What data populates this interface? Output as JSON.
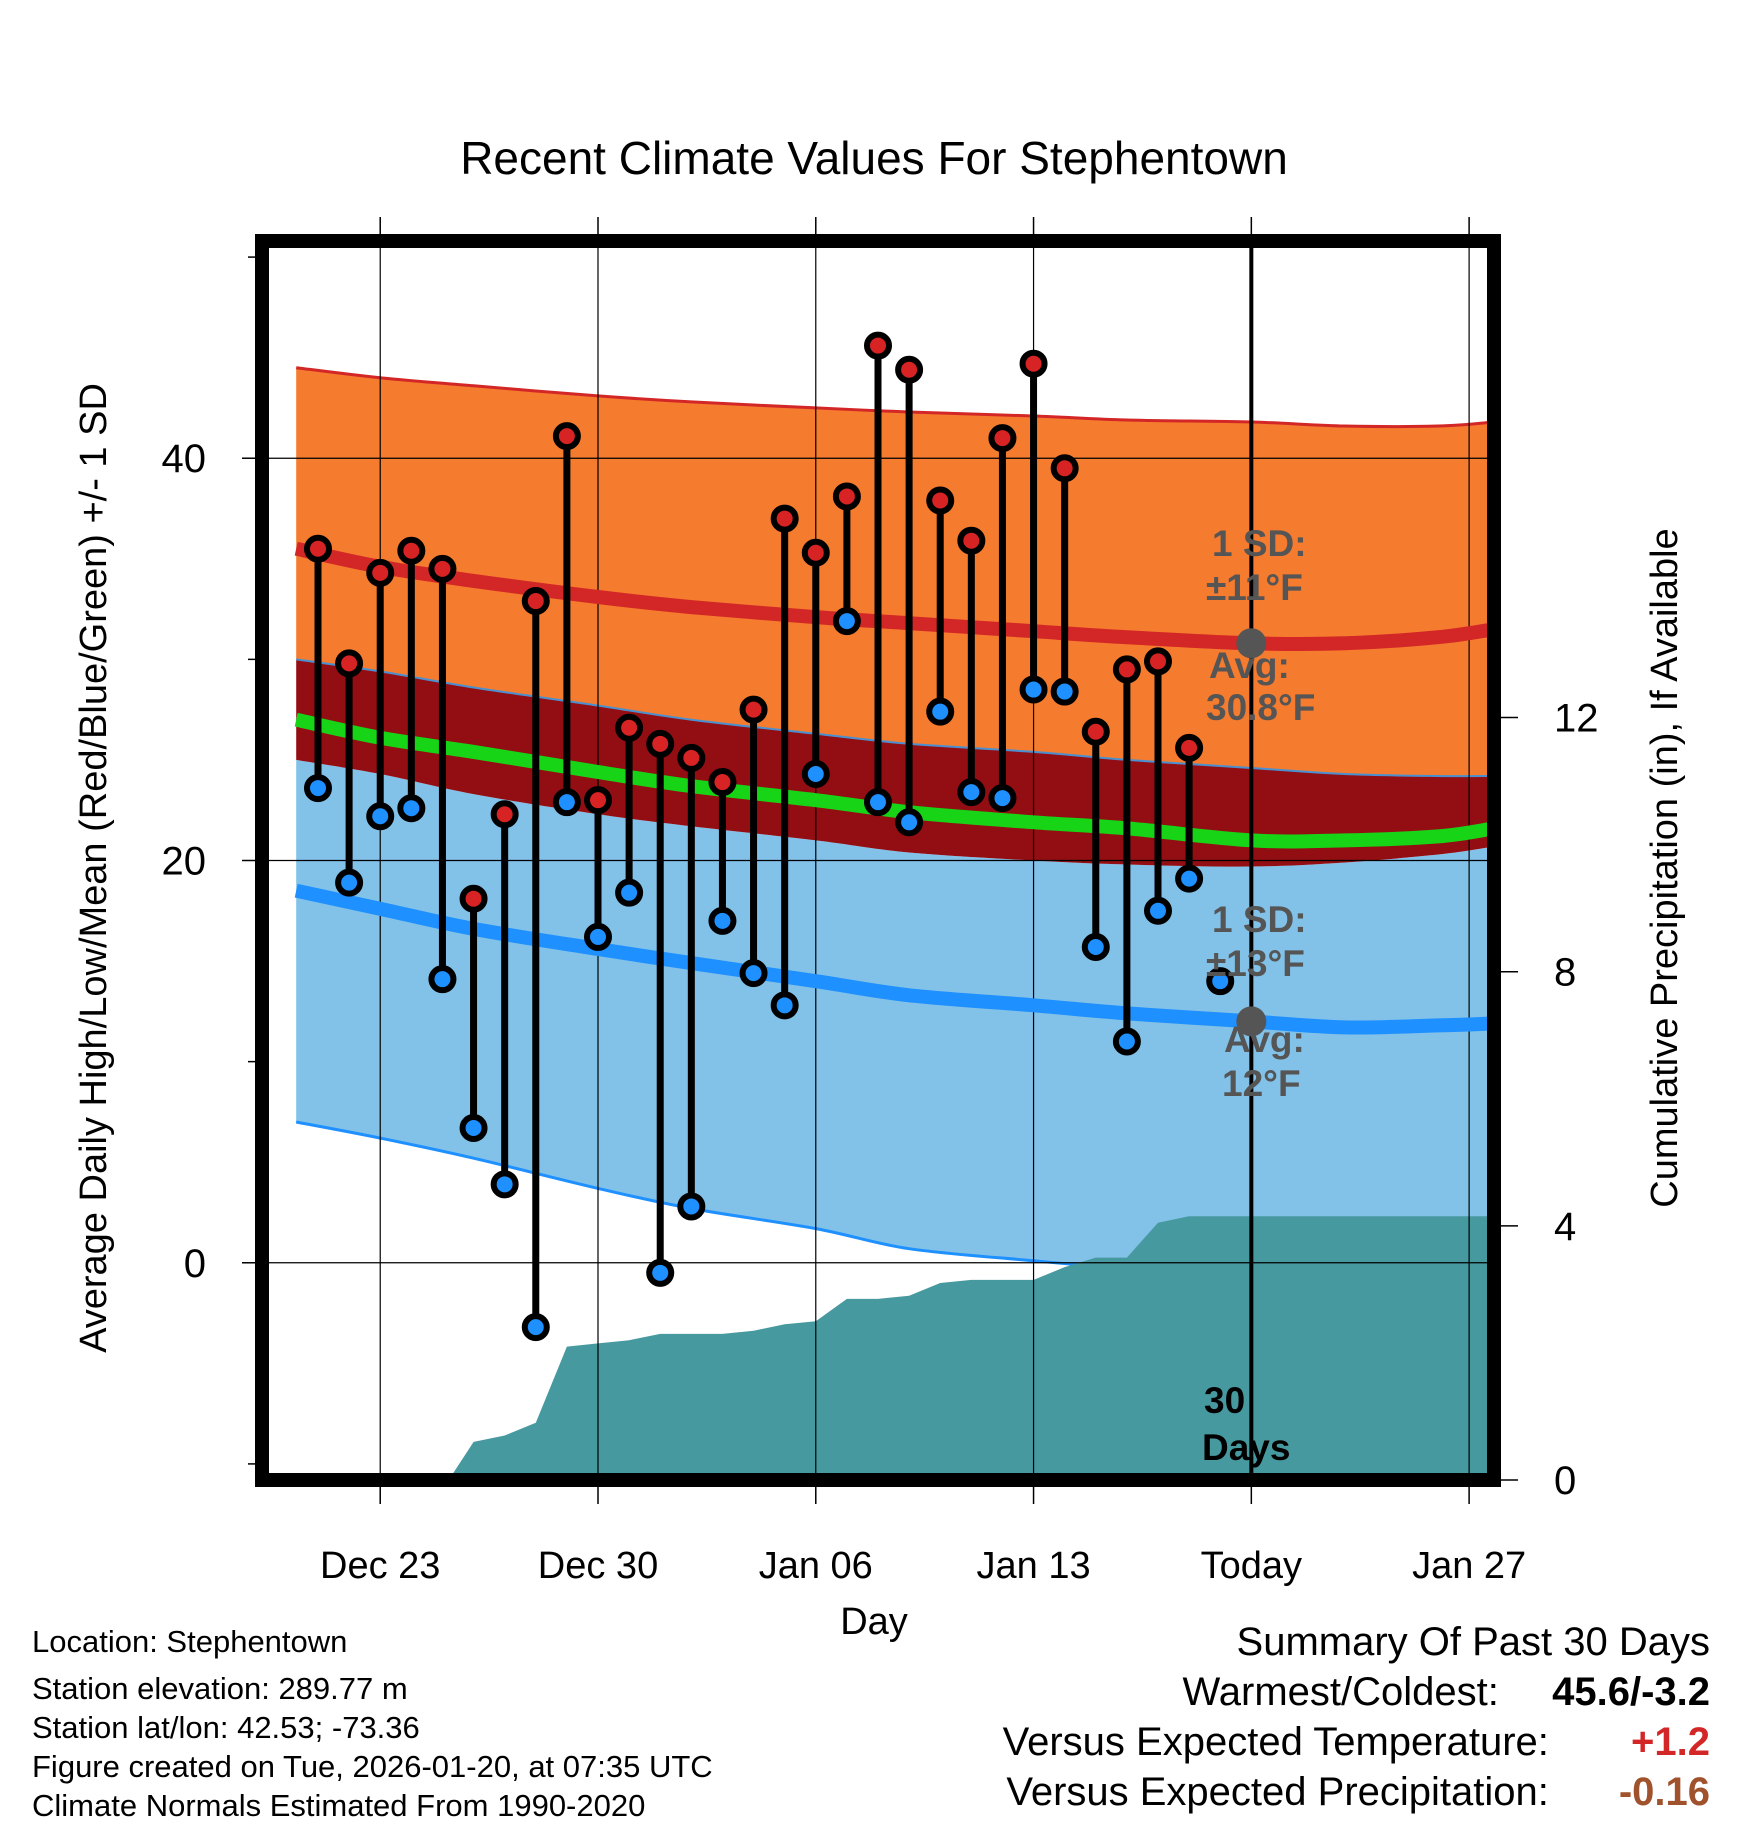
{
  "chart_data": {
    "type": "line",
    "title": "Recent Climate Values For Stephentown",
    "xlabel": "Day",
    "ylabel": "Average Daily High/Low/Mean (Red/Blue/Green) +/- 1 SD",
    "y2label": "Cumulative Precipitation (in), If Available",
    "xlim": [
      -3.8,
      35.8
    ],
    "ylim": [
      -10.8,
      50.8
    ],
    "y2lim": [
      0,
      19.5
    ],
    "x_ticks": [
      {
        "day": 0,
        "label": "Dec 23"
      },
      {
        "day": 7,
        "label": "Dec 30"
      },
      {
        "day": 14,
        "label": "Jan 06"
      },
      {
        "day": 21,
        "label": "Jan 13"
      },
      {
        "day": 28,
        "label": "Today"
      },
      {
        "day": 35,
        "label": "Jan 27"
      }
    ],
    "y_ticks": [
      0,
      20,
      40
    ],
    "y_minor_ticks": [
      -10,
      10,
      30,
      50
    ],
    "y2_ticks": [
      0,
      4,
      8,
      12
    ],
    "today_day": 28,
    "window_label": "30 Days",
    "normals": {
      "days": [
        -2.7,
        0,
        3,
        7,
        10,
        14,
        17,
        21,
        24,
        28,
        31,
        34,
        35.8
      ],
      "avg_high": [
        35.5,
        34.6,
        33.9,
        33.1,
        32.6,
        32.1,
        31.8,
        31.4,
        31.1,
        30.8,
        30.8,
        31.1,
        31.5
      ],
      "avg_low": [
        18.5,
        17.6,
        16.6,
        15.6,
        14.9,
        14.0,
        13.3,
        12.8,
        12.4,
        12.0,
        11.7,
        11.8,
        11.9
      ],
      "avg_mean": [
        27.0,
        26.1,
        25.4,
        24.4,
        23.7,
        23.0,
        22.4,
        21.9,
        21.6,
        21.0,
        21.0,
        21.2,
        21.6
      ],
      "high_plus_sd": [
        44.5,
        44.0,
        43.6,
        43.1,
        42.8,
        42.5,
        42.3,
        42.1,
        41.9,
        41.8,
        41.6,
        41.6,
        41.8
      ],
      "high_minus_sd": [
        30.0,
        29.4,
        28.6,
        27.7,
        27.0,
        26.3,
        25.8,
        25.4,
        25.0,
        24.6,
        24.3,
        24.2,
        24.2
      ],
      "low_plus_sd": [
        25.0,
        24.3,
        23.3,
        22.3,
        21.7,
        21.0,
        20.4,
        20.0,
        19.8,
        19.7,
        19.9,
        20.3,
        20.7
      ],
      "low_minus_sd": [
        7.0,
        6.2,
        5.2,
        3.7,
        2.7,
        1.7,
        0.7,
        0.1,
        -0.3,
        -0.7,
        -0.7,
        -0.3,
        0.0
      ]
    },
    "observations": {
      "days": [
        -2,
        -1,
        0,
        1,
        2,
        3,
        4,
        5,
        6,
        7,
        8,
        9,
        10,
        11,
        12,
        13,
        14,
        15,
        16,
        17,
        18,
        19,
        20,
        21,
        22,
        23,
        24,
        25,
        26,
        27
      ],
      "high": [
        35.5,
        29.8,
        34.3,
        35.4,
        34.5,
        18.1,
        22.3,
        32.9,
        41.1,
        23.0,
        26.6,
        25.8,
        25.1,
        23.9,
        27.5,
        37.0,
        35.3,
        38.1,
        45.6,
        44.4,
        37.9,
        35.9,
        41.0,
        44.7,
        39.5,
        26.4,
        29.5,
        29.9,
        25.6,
        null
      ],
      "low": [
        23.6,
        18.9,
        22.2,
        22.6,
        14.1,
        6.7,
        3.9,
        -3.2,
        22.9,
        16.2,
        18.4,
        -0.5,
        2.8,
        17.0,
        14.4,
        12.8,
        24.3,
        31.9,
        22.9,
        21.9,
        27.4,
        23.4,
        23.1,
        28.5,
        28.4,
        15.7,
        11.0,
        17.5,
        19.1,
        14.0
      ]
    },
    "precip": {
      "days": [
        -3.8,
        2.2,
        3,
        4,
        5,
        6,
        7,
        8,
        9,
        10,
        11,
        12,
        13,
        14,
        15,
        16,
        17,
        18,
        19,
        20,
        21,
        22,
        23,
        24,
        25,
        26,
        27,
        35.8
      ],
      "cumulative": [
        0,
        0,
        0.6,
        0.7,
        0.9,
        2.1,
        2.15,
        2.2,
        2.3,
        2.3,
        2.3,
        2.35,
        2.45,
        2.5,
        2.85,
        2.85,
        2.9,
        3.1,
        3.15,
        3.15,
        3.15,
        3.35,
        3.5,
        3.5,
        4.05,
        4.15,
        4.15,
        4.15
      ]
    },
    "annotations": {
      "high_sd_title": "1 SD:",
      "high_sd_value": "±11°F",
      "high_avg_title": "Avg:",
      "high_avg_value": "30.8°F",
      "low_sd_title": "1 SD:",
      "low_sd_value": "±13°F",
      "low_avg_title": "Avg:",
      "low_avg_value": "12°F"
    },
    "colors": {
      "high_band": "#f57b2e",
      "high_line": "#d32727",
      "overlap_band": "#920e13",
      "mean_line": "#17d417",
      "low_band": "#82c1e8",
      "low_line": "#1e90ff",
      "precip_fill": "#4799a0",
      "annotation_text": "#555555",
      "high_dot": "#d72323",
      "low_dot": "#1e90ff"
    }
  },
  "meta": {
    "location": "Location: Stephentown",
    "elevation": "Station elevation: 289.77 m",
    "latlon": "Station lat/lon: 42.53; -73.36",
    "created": "Figure created on Tue, 2026-01-20, at 07:35 UTC",
    "normals": "Climate Normals Estimated From 1990-2020"
  },
  "summary": {
    "title": "Summary Of Past 30 Days",
    "warmest_label": "Warmest/Coldest:",
    "warmest_value": "45.6/-3.2",
    "temp_label": "Versus Expected Temperature:",
    "temp_value": "+1.2",
    "temp_color": "#d32727",
    "precip_label": "Versus Expected Precipitation:",
    "precip_value": "-0.16",
    "precip_color": "#a0522d"
  }
}
